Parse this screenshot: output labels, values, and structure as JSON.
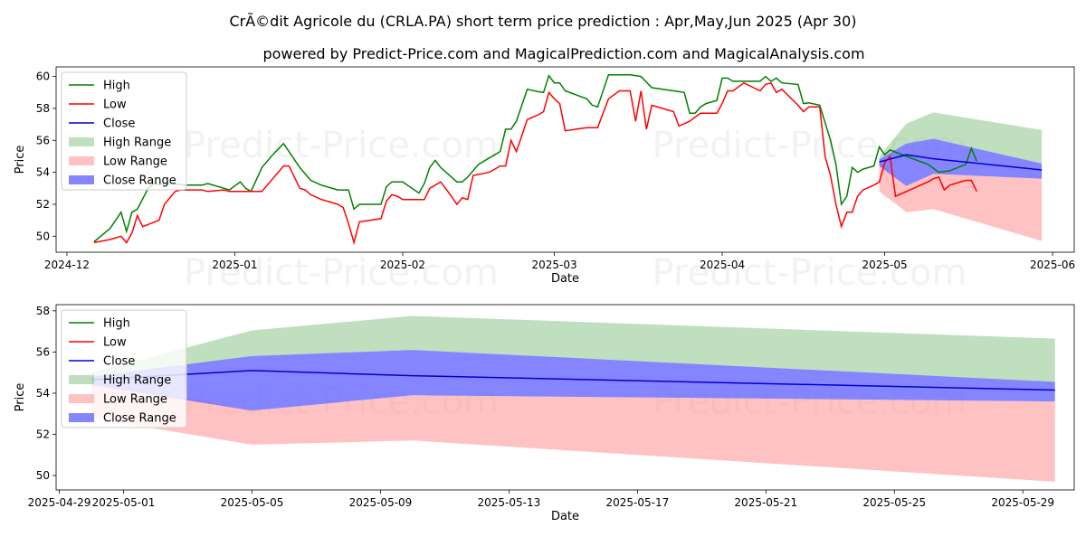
{
  "title": "CrÃ©dit Agricole du (CRLA.PA) short term price prediction : Apr,May,Jun 2025 (Apr 30)",
  "subtitle": "powered by Predict-Price.com and MagicalPrediction.com and MagicalAnalysis.com",
  "watermark": "Predict-Price.com",
  "colors": {
    "high": "#008000",
    "low": "#ff0000",
    "close": "#0000cc",
    "high_range": "#7fbf7f",
    "low_range": "#ff9999",
    "close_range": "#6666ff"
  },
  "chart_data": [
    {
      "type": "line",
      "xlabel": "Date",
      "ylabel": "Price",
      "xlim": [
        "2024-11-29",
        "2025-06-05"
      ],
      "ylim": [
        49.0,
        60.6
      ],
      "xticks": [
        "2024-12-01",
        "2025-01-01",
        "2025-02-01",
        "2025-03-01",
        "2025-04-01",
        "2025-05-01",
        "2025-06-01"
      ],
      "xtick_labels": [
        "2024-12",
        "2025-01",
        "2025-02",
        "2025-03",
        "2025-04",
        "2025-05",
        "2025-06"
      ],
      "yticks": [
        50,
        52,
        54,
        56,
        58,
        60
      ],
      "legend": "top-left",
      "legend_entries": [
        "High",
        "Low",
        "Close",
        "High Range",
        "Low Range",
        "Close Range"
      ],
      "series": [
        {
          "name": "High",
          "points": [
            [
              "2024-12-06",
              49.65
            ],
            [
              "2024-12-09",
              50.5
            ],
            [
              "2024-12-11",
              51.5
            ],
            [
              "2024-12-12",
              50.3
            ],
            [
              "2024-12-13",
              51.5
            ],
            [
              "2024-12-14",
              51.7
            ],
            [
              "2024-12-16",
              53.0
            ],
            [
              "2024-12-17",
              53.3
            ],
            [
              "2024-12-18",
              53.25
            ],
            [
              "2024-12-20",
              53.3
            ],
            [
              "2024-12-23",
              53.2
            ],
            [
              "2024-12-26",
              53.2
            ],
            [
              "2024-12-27",
              53.3
            ],
            [
              "2024-12-30",
              53.0
            ],
            [
              "2024-12-31",
              52.9
            ],
            [
              "2025-01-02",
              53.4
            ],
            [
              "2025-01-03",
              53.0
            ],
            [
              "2025-01-04",
              52.8
            ],
            [
              "2025-01-06",
              54.3
            ],
            [
              "2025-01-08",
              55.1
            ],
            [
              "2025-01-10",
              55.8
            ],
            [
              "2025-01-13",
              54.3
            ],
            [
              "2025-01-15",
              53.5
            ],
            [
              "2025-01-17",
              53.2
            ],
            [
              "2025-01-20",
              52.9
            ],
            [
              "2025-01-22",
              52.9
            ],
            [
              "2025-01-23",
              51.7
            ],
            [
              "2025-01-24",
              52.0
            ],
            [
              "2025-01-28",
              52.0
            ],
            [
              "2025-01-29",
              53.1
            ],
            [
              "2025-01-30",
              53.4
            ],
            [
              "2025-02-01",
              53.4
            ],
            [
              "2025-02-04",
              52.7
            ],
            [
              "2025-02-05",
              53.3
            ],
            [
              "2025-02-06",
              54.3
            ],
            [
              "2025-02-07",
              54.75
            ],
            [
              "2025-02-08",
              54.3
            ],
            [
              "2025-02-11",
              53.4
            ],
            [
              "2025-02-12",
              53.4
            ],
            [
              "2025-02-13",
              53.7
            ],
            [
              "2025-02-15",
              54.5
            ],
            [
              "2025-02-17",
              54.9
            ],
            [
              "2025-02-19",
              55.3
            ],
            [
              "2025-02-20",
              56.7
            ],
            [
              "2025-02-21",
              56.7
            ],
            [
              "2025-02-22",
              57.2
            ],
            [
              "2025-02-24",
              59.2
            ],
            [
              "2025-02-26",
              59.05
            ],
            [
              "2025-02-27",
              59.0
            ],
            [
              "2025-02-28",
              60.05
            ],
            [
              "2025-03-01",
              59.6
            ],
            [
              "2025-03-02",
              59.6
            ],
            [
              "2025-03-03",
              59.1
            ],
            [
              "2025-03-05",
              58.85
            ],
            [
              "2025-03-07",
              58.6
            ],
            [
              "2025-03-08",
              58.2
            ],
            [
              "2025-03-09",
              58.1
            ],
            [
              "2025-03-11",
              60.1
            ],
            [
              "2025-03-13",
              60.1
            ],
            [
              "2025-03-15",
              60.1
            ],
            [
              "2025-03-17",
              60.0
            ],
            [
              "2025-03-19",
              59.3
            ],
            [
              "2025-03-21",
              59.2
            ],
            [
              "2025-03-23",
              59.1
            ],
            [
              "2025-03-25",
              59.0
            ],
            [
              "2025-03-26",
              57.7
            ],
            [
              "2025-03-27",
              57.7
            ],
            [
              "2025-03-28",
              58.1
            ],
            [
              "2025-03-29",
              58.3
            ],
            [
              "2025-03-31",
              58.5
            ],
            [
              "2025-04-01",
              59.9
            ],
            [
              "2025-04-02",
              59.9
            ],
            [
              "2025-04-03",
              59.7
            ],
            [
              "2025-04-06",
              59.7
            ],
            [
              "2025-04-08",
              59.7
            ],
            [
              "2025-04-09",
              60.0
            ],
            [
              "2025-04-10",
              59.7
            ],
            [
              "2025-04-11",
              59.9
            ],
            [
              "2025-04-12",
              59.6
            ],
            [
              "2025-04-15",
              59.5
            ],
            [
              "2025-04-16",
              58.3
            ],
            [
              "2025-04-17",
              58.35
            ],
            [
              "2025-04-19",
              58.2
            ],
            [
              "2025-04-21",
              56.0
            ],
            [
              "2025-04-22",
              54.5
            ],
            [
              "2025-04-23",
              52.0
            ],
            [
              "2025-04-24",
              52.5
            ],
            [
              "2025-04-25",
              54.3
            ],
            [
              "2025-04-26",
              54.0
            ],
            [
              "2025-04-27",
              54.2
            ],
            [
              "2025-04-29",
              54.4
            ],
            [
              "2025-04-30",
              55.6
            ],
            [
              "2025-05-01",
              55.1
            ],
            [
              "2025-05-02",
              55.4
            ],
            [
              "2025-05-05",
              55.0
            ],
            [
              "2025-05-09",
              54.5
            ],
            [
              "2025-05-11",
              54.0
            ],
            [
              "2025-05-13",
              54.1
            ],
            [
              "2025-05-16",
              54.5
            ],
            [
              "2025-05-17",
              55.5
            ],
            [
              "2025-05-18",
              54.7
            ]
          ]
        },
        {
          "name": "Low",
          "points": [
            [
              "2024-12-06",
              49.6
            ],
            [
              "2024-12-09",
              49.8
            ],
            [
              "2024-12-11",
              50.0
            ],
            [
              "2024-12-12",
              49.6
            ],
            [
              "2024-12-13",
              50.2
            ],
            [
              "2024-12-14",
              51.3
            ],
            [
              "2024-12-15",
              50.6
            ],
            [
              "2024-12-18",
              51.0
            ],
            [
              "2024-12-19",
              52.0
            ],
            [
              "2024-12-21",
              52.8
            ],
            [
              "2024-12-22",
              52.9
            ],
            [
              "2024-12-24",
              52.9
            ],
            [
              "2024-12-26",
              52.9
            ],
            [
              "2024-12-27",
              52.8
            ],
            [
              "2024-12-30",
              52.9
            ],
            [
              "2024-12-31",
              52.8
            ],
            [
              "2025-01-03",
              52.8
            ],
            [
              "2025-01-06",
              52.8
            ],
            [
              "2025-01-08",
              53.6
            ],
            [
              "2025-01-10",
              54.4
            ],
            [
              "2025-01-11",
              54.4
            ],
            [
              "2025-01-13",
              53.0
            ],
            [
              "2025-01-14",
              52.9
            ],
            [
              "2025-01-15",
              52.6
            ],
            [
              "2025-01-17",
              52.3
            ],
            [
              "2025-01-20",
              52.0
            ],
            [
              "2025-01-21",
              51.8
            ],
            [
              "2025-01-22",
              50.8
            ],
            [
              "2025-01-23",
              49.6
            ],
            [
              "2025-01-24",
              50.9
            ],
            [
              "2025-01-28",
              51.1
            ],
            [
              "2025-01-29",
              52.2
            ],
            [
              "2025-01-30",
              52.6
            ],
            [
              "2025-01-31",
              52.5
            ],
            [
              "2025-02-01",
              52.3
            ],
            [
              "2025-02-04",
              52.3
            ],
            [
              "2025-02-05",
              52.3
            ],
            [
              "2025-02-06",
              53.0
            ],
            [
              "2025-02-08",
              53.4
            ],
            [
              "2025-02-10",
              52.5
            ],
            [
              "2025-02-11",
              52.0
            ],
            [
              "2025-02-12",
              52.4
            ],
            [
              "2025-02-13",
              52.3
            ],
            [
              "2025-02-14",
              53.8
            ],
            [
              "2025-02-17",
              54.0
            ],
            [
              "2025-02-19",
              54.4
            ],
            [
              "2025-02-20",
              54.4
            ],
            [
              "2025-02-21",
              56.0
            ],
            [
              "2025-02-22",
              55.3
            ],
            [
              "2025-02-24",
              57.3
            ],
            [
              "2025-02-26",
              57.6
            ],
            [
              "2025-02-27",
              57.8
            ],
            [
              "2025-02-28",
              59.0
            ],
            [
              "2025-03-01",
              58.6
            ],
            [
              "2025-03-02",
              58.3
            ],
            [
              "2025-03-03",
              56.6
            ],
            [
              "2025-03-05",
              56.7
            ],
            [
              "2025-03-07",
              56.8
            ],
            [
              "2025-03-09",
              56.8
            ],
            [
              "2025-03-11",
              58.6
            ],
            [
              "2025-03-13",
              59.1
            ],
            [
              "2025-03-15",
              59.1
            ],
            [
              "2025-03-16",
              57.2
            ],
            [
              "2025-03-17",
              59.1
            ],
            [
              "2025-03-18",
              56.7
            ],
            [
              "2025-03-19",
              58.2
            ],
            [
              "2025-03-21",
              58.0
            ],
            [
              "2025-03-23",
              57.8
            ],
            [
              "2025-03-24",
              56.9
            ],
            [
              "2025-03-26",
              57.2
            ],
            [
              "2025-03-28",
              57.7
            ],
            [
              "2025-03-31",
              57.7
            ],
            [
              "2025-04-01",
              58.3
            ],
            [
              "2025-04-02",
              59.1
            ],
            [
              "2025-04-03",
              59.1
            ],
            [
              "2025-04-05",
              59.6
            ],
            [
              "2025-04-08",
              59.1
            ],
            [
              "2025-04-09",
              59.5
            ],
            [
              "2025-04-10",
              59.6
            ],
            [
              "2025-04-11",
              59.0
            ],
            [
              "2025-04-12",
              59.2
            ],
            [
              "2025-04-15",
              58.2
            ],
            [
              "2025-04-16",
              57.8
            ],
            [
              "2025-04-17",
              58.1
            ],
            [
              "2025-04-19",
              58.1
            ],
            [
              "2025-04-20",
              55.0
            ],
            [
              "2025-04-21",
              53.8
            ],
            [
              "2025-04-22",
              52.0
            ],
            [
              "2025-04-23",
              50.6
            ],
            [
              "2025-04-24",
              51.5
            ],
            [
              "2025-04-25",
              51.5
            ],
            [
              "2025-04-26",
              52.5
            ],
            [
              "2025-04-27",
              52.9
            ],
            [
              "2025-04-29",
              53.2
            ],
            [
              "2025-04-30",
              53.4
            ],
            [
              "2025-05-01",
              54.6
            ],
            [
              "2025-05-02",
              55.0
            ],
            [
              "2025-05-03",
              52.5
            ],
            [
              "2025-05-05",
              52.8
            ],
            [
              "2025-05-09",
              53.4
            ],
            [
              "2025-05-10",
              53.6
            ],
            [
              "2025-05-11",
              53.7
            ],
            [
              "2025-05-12",
              52.9
            ],
            [
              "2025-05-13",
              53.2
            ],
            [
              "2025-05-16",
              53.5
            ],
            [
              "2025-05-17",
              53.5
            ],
            [
              "2025-05-18",
              52.8
            ]
          ]
        }
      ]
    },
    {
      "type": "line",
      "xlabel": "Date",
      "ylabel": "Price",
      "xlim": [
        "2025-04-28.9",
        "2025-05-30.6"
      ],
      "ylim": [
        49.3,
        58.3
      ],
      "xticks": [
        "2025-04-29",
        "2025-05-01",
        "2025-05-05",
        "2025-05-09",
        "2025-05-13",
        "2025-05-17",
        "2025-05-21",
        "2025-05-25",
        "2025-05-29"
      ],
      "xtick_labels": [
        "2025-04-29",
        "2025-05-01",
        "2025-05-05",
        "2025-05-09",
        "2025-05-13",
        "2025-05-17",
        "2025-05-21",
        "2025-05-25",
        "2025-05-29"
      ],
      "yticks": [
        50,
        52,
        54,
        56,
        58
      ],
      "legend": "top-left",
      "legend_entries": [
        "High",
        "Low",
        "Close",
        "High Range",
        "Low Range",
        "Close Range"
      ]
    }
  ],
  "forecast": {
    "x": [
      "2025-04-30",
      "2025-05-05",
      "2025-05-10",
      "2025-05-30"
    ],
    "close": [
      54.65,
      55.1,
      54.85,
      54.15
    ],
    "high_range": {
      "upper": [
        55.0,
        57.05,
        57.75,
        56.65
      ],
      "lower": [
        54.65,
        55.8,
        56.1,
        54.55
      ]
    },
    "low_range": {
      "upper": [
        54.65,
        53.15,
        53.9,
        53.6
      ],
      "lower": [
        52.8,
        51.5,
        51.7,
        49.7
      ]
    },
    "close_range": {
      "upper": [
        54.8,
        55.8,
        56.1,
        54.55
      ],
      "lower": [
        54.4,
        53.15,
        53.9,
        53.6
      ]
    }
  }
}
